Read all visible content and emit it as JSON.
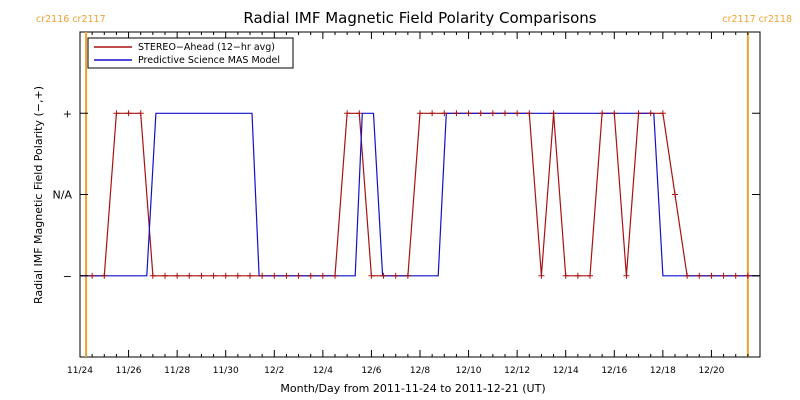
{
  "chart_data": {
    "type": "line",
    "title": "Radial IMF Magnetic Field Polarity Comparisons",
    "xlabel": "Month/Day from 2011-11-24 to 2011-12-21 (UT)",
    "ylabel": "Radial IMF Magnetic Field Polarity (−,+)",
    "x_start": "2011-11-24",
    "xlim": [
      "2011-11-24T00:00",
      "2011-12-22T00:00"
    ],
    "x_tick_labels": [
      "11/24",
      "11/26",
      "11/28",
      "11/30",
      "12/2",
      "12/4",
      "12/6",
      "12/8",
      "12/10",
      "12/12",
      "12/14",
      "12/16",
      "12/18",
      "12/20"
    ],
    "y_categories": [
      "−",
      "N/A",
      "+"
    ],
    "y_values_meaning": {
      "-1": "−",
      "0": "N/A",
      "1": "+"
    },
    "ylim": [
      -2,
      2
    ],
    "legend_position": "top-left",
    "carrington_markers": [
      {
        "date": "2011-11-24T06:00",
        "label": "cr2116 cr2117",
        "label_side": "left",
        "color": "#f0a030"
      },
      {
        "date": "2011-12-21T12:00",
        "label": "cr2117 cr2118",
        "label_side": "right",
        "color": "#f0a030"
      }
    ],
    "series": [
      {
        "name": "STEREO−Ahead (12−hr avg)",
        "color": "#aa1111",
        "markers": "plus",
        "times": [
          "2011-11-24T00:00",
          "2011-11-24T12:00",
          "2011-11-25T00:00",
          "2011-11-25T12:00",
          "2011-11-26T00:00",
          "2011-11-26T12:00",
          "2011-11-27T00:00",
          "2011-11-27T12:00",
          "2011-11-28T00:00",
          "2011-11-28T12:00",
          "2011-11-29T00:00",
          "2011-11-29T12:00",
          "2011-11-30T00:00",
          "2011-11-30T12:00",
          "2011-12-01T00:00",
          "2011-12-01T12:00",
          "2011-12-02T00:00",
          "2011-12-02T12:00",
          "2011-12-03T00:00",
          "2011-12-03T12:00",
          "2011-12-04T00:00",
          "2011-12-04T12:00",
          "2011-12-05T00:00",
          "2011-12-05T12:00",
          "2011-12-06T00:00",
          "2011-12-06T12:00",
          "2011-12-07T00:00",
          "2011-12-07T12:00",
          "2011-12-08T00:00",
          "2011-12-08T12:00",
          "2011-12-09T00:00",
          "2011-12-09T12:00",
          "2011-12-10T00:00",
          "2011-12-10T12:00",
          "2011-12-11T00:00",
          "2011-12-11T12:00",
          "2011-12-12T00:00",
          "2011-12-12T12:00",
          "2011-12-13T00:00",
          "2011-12-13T12:00",
          "2011-12-14T00:00",
          "2011-12-14T12:00",
          "2011-12-15T00:00",
          "2011-12-15T12:00",
          "2011-12-16T00:00",
          "2011-12-16T12:00",
          "2011-12-17T00:00",
          "2011-12-17T12:00",
          "2011-12-18T00:00",
          "2011-12-18T12:00",
          "2011-12-19T00:00",
          "2011-12-19T12:00",
          "2011-12-20T00:00",
          "2011-12-20T12:00",
          "2011-12-21T00:00",
          "2011-12-21T12:00",
          "2011-12-22T00:00"
        ],
        "values": [
          -1,
          -1,
          -1,
          1,
          1,
          1,
          -1,
          -1,
          -1,
          -1,
          -1,
          -1,
          -1,
          -1,
          -1,
          -1,
          -1,
          -1,
          -1,
          -1,
          -1,
          -1,
          1,
          1,
          -1,
          -1,
          -1,
          -1,
          1,
          1,
          1,
          1,
          1,
          1,
          1,
          1,
          1,
          1,
          -1,
          1,
          -1,
          -1,
          -1,
          1,
          1,
          -1,
          1,
          1,
          1,
          0,
          -1,
          -1,
          -1,
          -1,
          -1,
          -1,
          -1
        ]
      },
      {
        "name": "Predictive Science MAS Model",
        "color": "#1111cc",
        "markers": "none",
        "times": [
          "2011-11-24T00:00",
          "2011-11-26T18:00",
          "2011-11-27T03:00",
          "2011-12-01T02:00",
          "2011-12-01T09:00",
          "2011-12-05T08:00",
          "2011-12-05T15:00",
          "2011-12-06T02:00",
          "2011-12-06T11:00",
          "2011-12-08T18:00",
          "2011-12-09T02:00",
          "2011-12-17T15:00",
          "2011-12-18T00:00",
          "2011-12-22T00:00"
        ],
        "values": [
          -1,
          -1,
          1,
          1,
          -1,
          -1,
          1,
          1,
          -1,
          -1,
          1,
          1,
          -1,
          -1
        ]
      }
    ]
  }
}
